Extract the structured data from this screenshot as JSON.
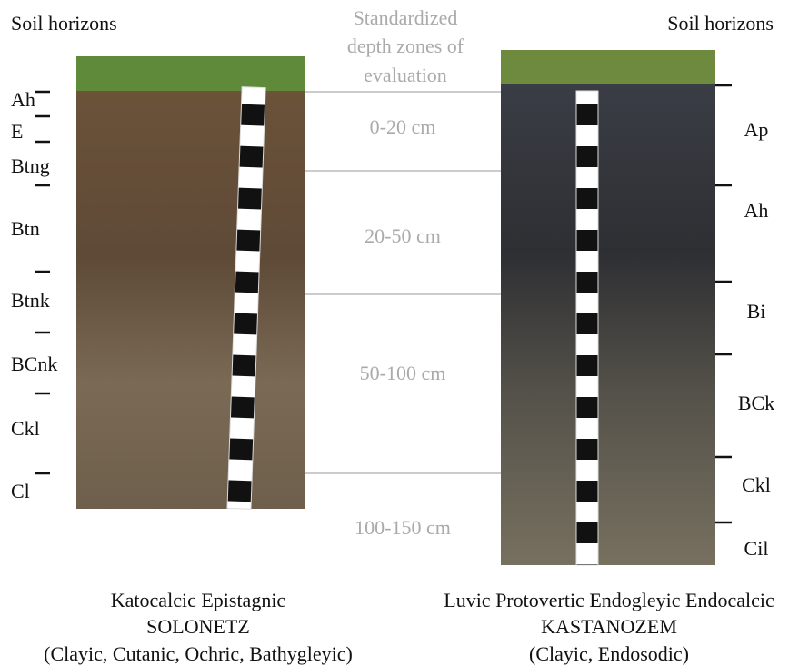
{
  "left": {
    "title": "Soil horizons",
    "horizons": [
      "Ah",
      "E",
      "Btng",
      "Btn",
      "Btnk",
      "BCnk",
      "Ckl",
      "Cl"
    ],
    "caption": [
      "Katocalcic Epistagnic",
      "SOLONETZ",
      "(Clayic, Cutanic, Ochric, Bathygleyic)"
    ]
  },
  "center": {
    "header": [
      "Standardized",
      "depth zones of",
      "evaluation"
    ],
    "zones": [
      "0-20 cm",
      "20-50 cm",
      "50-100 cm",
      "100-150 cm"
    ]
  },
  "right": {
    "title": "Soil horizons",
    "horizons": [
      "Ap",
      "Ah",
      "Bi",
      "BCk",
      "Ckl",
      "Cil"
    ],
    "caption": [
      "Luvic Protovertic Endogleyic Endocalcic",
      "KASTANOZEM",
      "(Clayic, Endosodic)"
    ]
  }
}
